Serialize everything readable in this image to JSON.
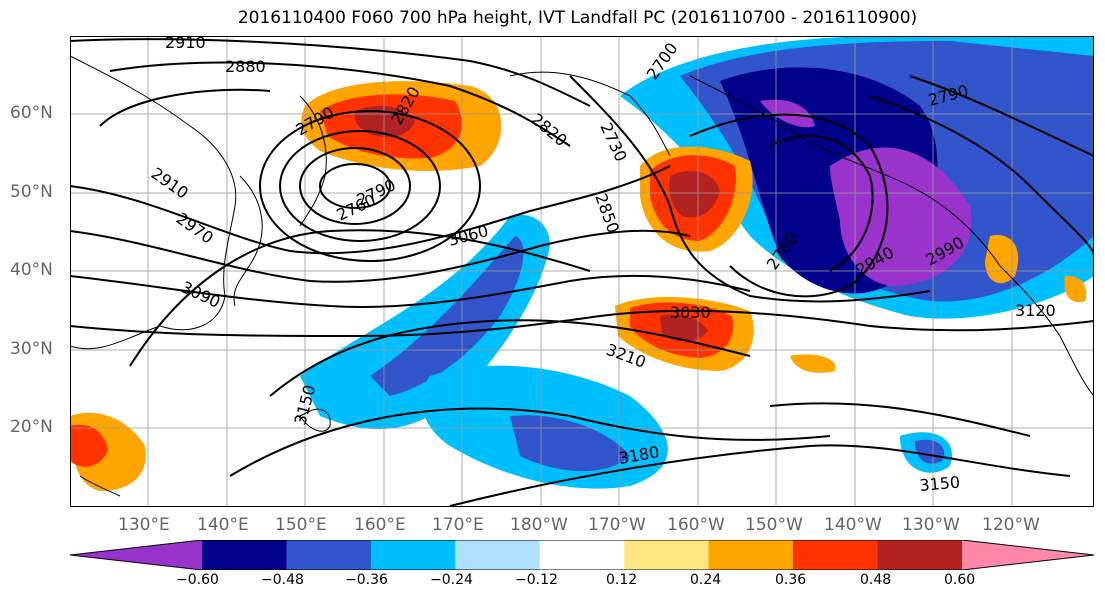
{
  "title": "2016110400 F060 700 hPa height, IVT Landfall PC (2016110700 - 2016110900)",
  "lat_labels": [
    "60°N",
    "50°N",
    "40°N",
    "30°N",
    "20°N"
  ],
  "lon_labels": [
    "130°E",
    "140°E",
    "150°E",
    "160°E",
    "170°E",
    "180°W",
    "170°W",
    "160°W",
    "150°W",
    "140°W",
    "130°W",
    "120°W"
  ],
  "contour_labels": [
    "2910",
    "2880",
    "2790",
    "2820",
    "2760",
    "2790",
    "2910",
    "2970",
    "3090",
    "3060",
    "2820",
    "2730",
    "2850",
    "3030",
    "3210",
    "3150",
    "3180",
    "2790",
    "2760",
    "2940",
    "2990",
    "3120",
    "3150",
    "2700"
  ],
  "colorbar": {
    "ticks": [
      "−0.60",
      "−0.48",
      "−0.36",
      "−0.24",
      "−0.12",
      "0.12",
      "0.24",
      "0.36",
      "0.48",
      "0.60"
    ],
    "colors": [
      "#9933cc",
      "#00008b",
      "#3355cc",
      "#00bfff",
      "#b0e0ff",
      "#ffffff",
      "#ffe680",
      "#ffa500",
      "#ff3300",
      "#b22222",
      "#ff88aa"
    ]
  }
}
